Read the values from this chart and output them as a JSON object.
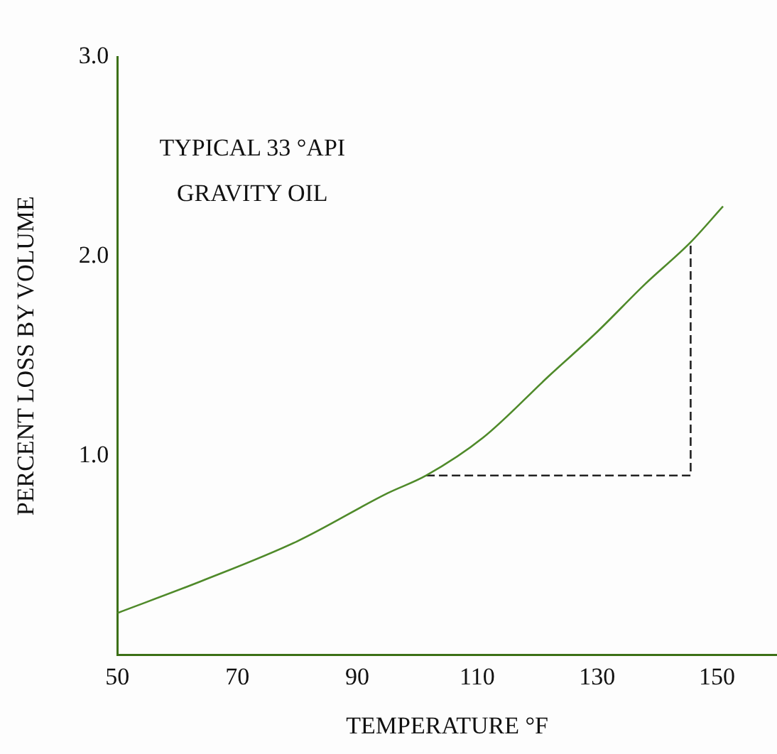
{
  "chart_data": {
    "type": "line",
    "xlabel": "TEMPERATURE °F",
    "ylabel": "PERCENT LOSS BY VOLUME",
    "annotations": [
      "TYPICAL 33 °API\nGRAVITY OIL"
    ],
    "xlim": [
      50,
      160
    ],
    "xticks": [
      50,
      70,
      90,
      110,
      130,
      150
    ],
    "ylim": [
      0,
      3
    ],
    "yticks": [
      {
        "value": 1,
        "label": "1.0"
      },
      {
        "value": 2,
        "label": "2.0"
      },
      {
        "value": 3,
        "label": "3.0"
      }
    ],
    "grid": false,
    "legend": false,
    "marker": "none",
    "series": [
      {
        "type": "line",
        "color": "#4f8a2a",
        "line_style": "solid",
        "x": [
          50,
          64,
          80,
          95,
          101.5,
          111,
          122,
          130,
          138,
          145.6,
          151
        ],
        "values": [
          0.21,
          0.37,
          0.57,
          0.81,
          0.9,
          1.09,
          1.4,
          1.62,
          1.86,
          2.07,
          2.25
        ]
      },
      {
        "type": "line",
        "color": "#222222",
        "line_style": "dashed",
        "x": [
          101.5,
          145.6,
          145.6
        ],
        "values": [
          0.9,
          0.9,
          2.07
        ]
      }
    ]
  }
}
